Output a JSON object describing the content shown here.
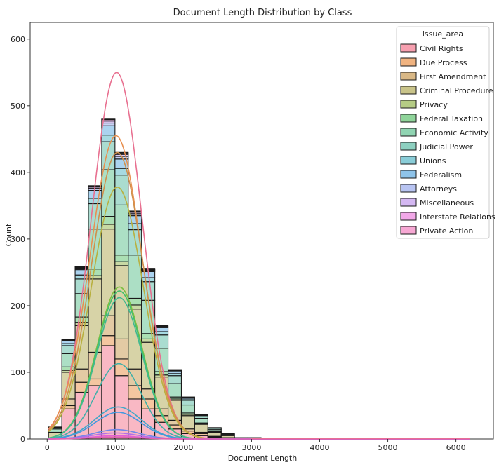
{
  "chart_data": {
    "type": "histogram",
    "title": "Document Length Distribution by Class",
    "xlabel": "Document Length",
    "ylabel": "Count",
    "xlim": [
      -250,
      6550
    ],
    "ylim": [
      0,
      625
    ],
    "xticks": [
      0,
      1000,
      2000,
      3000,
      4000,
      5000,
      6000
    ],
    "yticks": [
      0,
      100,
      200,
      300,
      400,
      500,
      600
    ],
    "stacked": true,
    "kde": true,
    "grid": false,
    "legend": {
      "title": "issue_area",
      "placement": "top-right"
    },
    "bins": [
      [
        20,
        215
      ],
      [
        215,
        410
      ],
      [
        410,
        605
      ],
      [
        605,
        800
      ],
      [
        800,
        995
      ],
      [
        995,
        1190
      ],
      [
        1190,
        1385
      ],
      [
        1385,
        1580
      ],
      [
        1580,
        1775
      ],
      [
        1775,
        1970
      ],
      [
        1970,
        2165
      ],
      [
        2165,
        2360
      ],
      [
        2360,
        2555
      ],
      [
        2555,
        2750
      ],
      [
        2750,
        2945
      ],
      [
        2945,
        3140
      ],
      [
        3140,
        3335
      ],
      [
        3335,
        3530
      ],
      [
        3530,
        3725
      ]
    ],
    "series": [
      {
        "name": "Civil Rights",
        "color": "#f7a0b0",
        "values": [
          0,
          45,
          70,
          80,
          140,
          95,
          60,
          45,
          25,
          15,
          8,
          5,
          2,
          1,
          0,
          0,
          0,
          0,
          0
        ]
      },
      {
        "name": "Due Process",
        "color": "#f0b380",
        "values": [
          0,
          5,
          15,
          10,
          15,
          25,
          20,
          15,
          10,
          6,
          4,
          3,
          1,
          1,
          0,
          0,
          0,
          0,
          0
        ]
      },
      {
        "name": "First Amendment",
        "color": "#d9b886",
        "values": [
          0,
          10,
          20,
          40,
          30,
          30,
          25,
          15,
          10,
          7,
          3,
          2,
          1,
          0,
          0,
          0,
          0,
          0,
          0
        ]
      },
      {
        "name": "Criminal Procedure",
        "color": "#c9c48a",
        "values": [
          10,
          40,
          65,
          110,
          130,
          110,
          90,
          70,
          48,
          30,
          20,
          12,
          5,
          3,
          1,
          1,
          0,
          0,
          0
        ]
      },
      {
        "name": "Privacy",
        "color": "#b5cc85",
        "values": [
          0,
          3,
          5,
          5,
          7,
          6,
          6,
          5,
          3,
          2,
          2,
          1,
          1,
          0,
          0,
          0,
          0,
          0,
          0
        ]
      },
      {
        "name": "Federal Taxation",
        "color": "#8fd49a",
        "values": [
          0,
          5,
          8,
          10,
          12,
          10,
          10,
          8,
          5,
          3,
          2,
          1,
          1,
          0,
          0,
          0,
          0,
          0,
          0
        ]
      },
      {
        "name": "Economic Activity",
        "color": "#90d4b2",
        "values": [
          5,
          20,
          35,
          60,
          70,
          75,
          65,
          50,
          35,
          20,
          12,
          7,
          3,
          2,
          1,
          1,
          1,
          0,
          0
        ]
      },
      {
        "name": "Judicial Power",
        "color": "#8dd0c0",
        "values": [
          2,
          12,
          22,
          38,
          42,
          45,
          38,
          28,
          20,
          12,
          7,
          4,
          2,
          1,
          0,
          0,
          0,
          0,
          0
        ]
      },
      {
        "name": "Unions",
        "color": "#8acdd8",
        "values": [
          1,
          3,
          6,
          8,
          10,
          10,
          9,
          6,
          5,
          3,
          2,
          1,
          0,
          0,
          0,
          0,
          0,
          0,
          0
        ]
      },
      {
        "name": "Federalism",
        "color": "#8fc4ea",
        "values": [
          0,
          4,
          8,
          12,
          14,
          14,
          12,
          9,
          6,
          4,
          2,
          1,
          1,
          0,
          0,
          0,
          0,
          0,
          0
        ]
      },
      {
        "name": "Attorneys",
        "color": "#b8c4f2",
        "values": [
          0,
          1,
          2,
          3,
          4,
          4,
          3,
          2,
          2,
          1,
          1,
          0,
          0,
          0,
          0,
          0,
          0,
          0,
          0
        ]
      },
      {
        "name": "Miscellaneous",
        "color": "#d4b8f2",
        "values": [
          0,
          1,
          1,
          2,
          3,
          3,
          2,
          1,
          1,
          1,
          0,
          0,
          0,
          0,
          0,
          0,
          0,
          0,
          0
        ]
      },
      {
        "name": "Interstate Relations",
        "color": "#f2a8e8",
        "values": [
          0,
          0,
          1,
          1,
          2,
          2,
          1,
          1,
          0,
          0,
          0,
          0,
          0,
          0,
          0,
          0,
          0,
          0,
          0
        ]
      },
      {
        "name": "Private Action",
        "color": "#f7a8d4",
        "values": [
          0,
          0,
          1,
          1,
          1,
          1,
          1,
          1,
          0,
          0,
          0,
          0,
          0,
          0,
          0,
          0,
          0,
          0,
          0
        ]
      }
    ],
    "kde_curves": [
      {
        "name": "Civil Rights",
        "color": "#e87090",
        "peak": 550,
        "mean": 1020,
        "sd": 370
      },
      {
        "name": "Due Process",
        "color": "#e89050",
        "peak": 455,
        "mean": 1010,
        "sd": 380
      },
      {
        "name": "First Amendment",
        "color": "#d0904c",
        "peak": 430,
        "mean": 1030,
        "sd": 380
      },
      {
        "name": "Criminal Procedure",
        "color": "#b8b040",
        "peak": 378,
        "mean": 1030,
        "sd": 380
      },
      {
        "name": "Privacy",
        "color": "#7cbf40",
        "peak": 228,
        "mean": 1060,
        "sd": 330
      },
      {
        "name": "Federal Taxation",
        "color": "#44c06c",
        "peak": 222,
        "mean": 1060,
        "sd": 330
      },
      {
        "name": "Economic Activity",
        "color": "#40b890",
        "peak": 212,
        "mean": 1060,
        "sd": 330
      },
      {
        "name": "Judicial Power",
        "color": "#40b0a8",
        "peak": 113,
        "mean": 1050,
        "sd": 330
      },
      {
        "name": "Unions",
        "color": "#40a8c8",
        "peak": 48,
        "mean": 1040,
        "sd": 340
      },
      {
        "name": "Federalism",
        "color": "#4098e0",
        "peak": 40,
        "mean": 1040,
        "sd": 340
      },
      {
        "name": "Attorneys",
        "color": "#7088e8",
        "peak": 14,
        "mean": 1020,
        "sd": 330
      },
      {
        "name": "Miscellaneous",
        "color": "#b070e8",
        "peak": 9,
        "mean": 1000,
        "sd": 330
      },
      {
        "name": "Interstate Relations",
        "color": "#e060d8",
        "peak": 5,
        "mean": 1000,
        "sd": 330
      },
      {
        "name": "Private Action",
        "color": "#e060b0",
        "peak": 3,
        "mean": 1000,
        "sd": 330
      }
    ]
  }
}
